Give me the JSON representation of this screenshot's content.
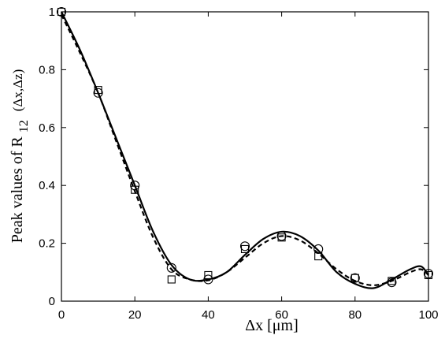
{
  "chart_data": {
    "type": "line",
    "title": "",
    "xlabel": "Δx      [μm]",
    "ylabel_parts": {
      "prefix": "Peak    values    of  R",
      "subscript": "12",
      "suffix": "(Δx,Δz)"
    },
    "xlim": [
      0,
      100
    ],
    "ylim": [
      0,
      1
    ],
    "x_ticks": [
      "0",
      "20",
      "40",
      "60",
      "80",
      "100"
    ],
    "y_ticks": [
      "0",
      "0.2",
      "0.4",
      "0.6",
      "0.8",
      "1"
    ],
    "grid": false,
    "legend": "none",
    "series": [
      {
        "style": "solid-line",
        "color": "#000000",
        "x": [
          0,
          5,
          10,
          15,
          20,
          25,
          30,
          35,
          40,
          45,
          50,
          55,
          60,
          65,
          70,
          75,
          80,
          85,
          90,
          95,
          98,
          100
        ],
        "y": [
          1.0,
          0.87,
          0.72,
          0.56,
          0.4,
          0.24,
          0.125,
          0.075,
          0.075,
          0.1,
          0.16,
          0.215,
          0.24,
          0.225,
          0.175,
          0.1,
          0.06,
          0.045,
          0.075,
          0.11,
          0.12,
          0.09
        ]
      },
      {
        "style": "dashed-line",
        "color": "#000000",
        "x": [
          0,
          5,
          10,
          15,
          20,
          25,
          30,
          35,
          40,
          45,
          50,
          55,
          60,
          65,
          70,
          75,
          80,
          85,
          90,
          95,
          98,
          100
        ],
        "y": [
          0.99,
          0.86,
          0.72,
          0.55,
          0.38,
          0.22,
          0.11,
          0.075,
          0.072,
          0.1,
          0.15,
          0.2,
          0.225,
          0.21,
          0.165,
          0.11,
          0.07,
          0.055,
          0.07,
          0.1,
          0.11,
          0.09
        ]
      },
      {
        "style": "circle-markers",
        "color": "#000000",
        "x": [
          0,
          10,
          20,
          30,
          40,
          50,
          60,
          70,
          80,
          90,
          100
        ],
        "y": [
          1.0,
          0.72,
          0.4,
          0.115,
          0.075,
          0.19,
          0.225,
          0.18,
          0.08,
          0.065,
          0.095
        ]
      },
      {
        "style": "square-markers",
        "color": "#000000",
        "x": [
          0,
          10,
          20,
          30,
          40,
          50,
          60,
          70,
          80,
          90,
          100
        ],
        "y": [
          1.0,
          0.73,
          0.385,
          0.075,
          0.09,
          0.18,
          0.22,
          0.155,
          0.08,
          0.07,
          0.09
        ]
      }
    ]
  }
}
